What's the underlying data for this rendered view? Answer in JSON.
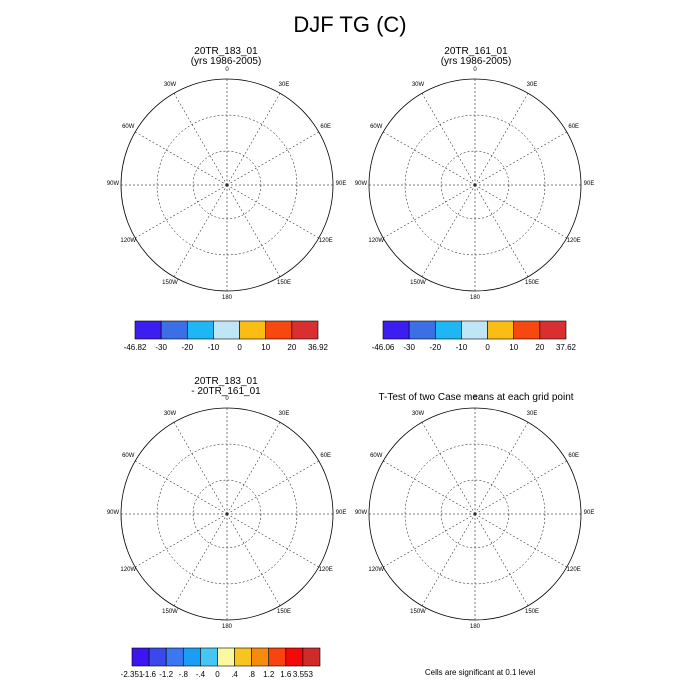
{
  "title": "DJF TG (C)",
  "panels": [
    {
      "title_line1": "20TR_183_01",
      "title_line2": "(yrs 1986-2005)"
    },
    {
      "title_line1": "20TR_161_01",
      "title_line2": "(yrs 1986-2005)"
    },
    {
      "title_line1": "20TR_183_01",
      "title_line2": "- 20TR_161_01"
    },
    {
      "title_line1": "T-Test of two Case means at each grid point",
      "title_line2": ""
    }
  ],
  "longitude_labels": [
    "0",
    "30E",
    "60E",
    "90E",
    "120E",
    "150E",
    "180",
    "150W",
    "120W",
    "90W",
    "60W",
    "30W"
  ],
  "colorbars": [
    {
      "colors": [
        "#3d1ef0",
        "#3c6fe6",
        "#1fb6f5",
        "#bfe6f7",
        "#fbbc14",
        "#f7480f",
        "#d83030"
      ],
      "labels": [
        "-46.82",
        "-30",
        "-20",
        "-10",
        "0",
        "10",
        "20",
        "36.92"
      ]
    },
    {
      "colors": [
        "#3d1ef0",
        "#3c6fe6",
        "#1fb6f5",
        "#bfe6f7",
        "#fbbc14",
        "#f7480f",
        "#d83030"
      ],
      "labels": [
        "-46.06",
        "-30",
        "-20",
        "-10",
        "0",
        "10",
        "20",
        "37.62"
      ]
    },
    {
      "colors": [
        "#3c15f0",
        "#3949ec",
        "#3b77f0",
        "#1a9ef5",
        "#47c6f5",
        "#fbf9a0",
        "#f9c420",
        "#f78b0c",
        "#f94410",
        "#f60808",
        "#cf2b2b"
      ],
      "labels": [
        "-2.351",
        "-1.6",
        "-1.2",
        "-.8",
        "-.4",
        "0",
        ".4",
        ".8",
        "1.2",
        "1.6",
        "3.553"
      ]
    }
  ],
  "note": "Cells are significant at 0.1 level",
  "colors": {
    "deep": "#3d1ef0",
    "mid": "#3c6fe6",
    "light": "#1fb6f5",
    "pale": "#bfe6f7",
    "diff_base": "#47c6f5",
    "diff_pale": "#a9d6ef",
    "diff_yellow": "#fbf9a0",
    "diff_orange": "#f9c420",
    "sig_red": "#f60808"
  }
}
